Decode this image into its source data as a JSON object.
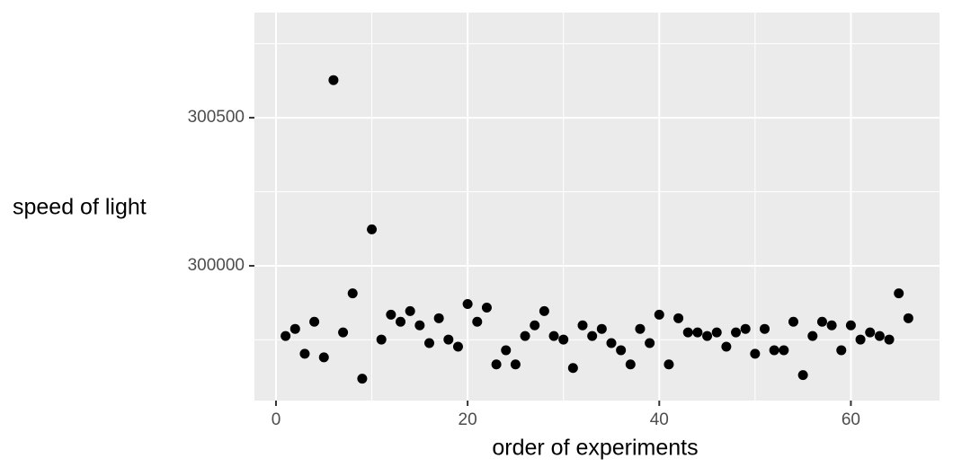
{
  "chart_data": {
    "type": "scatter",
    "x_label": "order of experiments",
    "y_label": "speed of light",
    "x": [
      1,
      2,
      3,
      4,
      5,
      6,
      7,
      8,
      9,
      10,
      11,
      12,
      13,
      14,
      15,
      16,
      17,
      18,
      19,
      20,
      21,
      22,
      23,
      24,
      25,
      26,
      27,
      28,
      29,
      30,
      31,
      32,
      33,
      34,
      35,
      36,
      37,
      38,
      39,
      40,
      41,
      42,
      43,
      44,
      45,
      46,
      47,
      48,
      49,
      50,
      51,
      52,
      53,
      54,
      55,
      56,
      57,
      58,
      59,
      60,
      61,
      62,
      63,
      64,
      65,
      66
    ],
    "values": [
      299763,
      299787,
      299703,
      299811,
      299691,
      300627,
      299775,
      299907,
      299619,
      300123,
      299751,
      299835,
      299811,
      299847,
      299799,
      299739,
      299823,
      299751,
      299727,
      299871,
      299811,
      299859,
      299667,
      299715,
      299667,
      299763,
      299799,
      299847,
      299763,
      299751,
      299655,
      299799,
      299763,
      299787,
      299739,
      299715,
      299667,
      299787,
      299739,
      299835,
      299667,
      299823,
      299775,
      299775,
      299763,
      299775,
      299727,
      299775,
      299787,
      299703,
      299787,
      299715,
      299715,
      299811,
      299631,
      299763,
      299811,
      299799,
      299715,
      299799,
      299751,
      299775,
      299763,
      299751,
      299907,
      299823
    ],
    "color": "#000000",
    "xlim": [
      -2.25,
      69.25
    ],
    "ylim": [
      299545,
      300855
    ],
    "xticks": [
      0,
      20,
      40,
      60
    ],
    "yticks": [
      300000,
      300500
    ],
    "x_minor_ticks": [
      10,
      30,
      50
    ],
    "y_minor_ticks": [
      299750,
      300250,
      300750
    ],
    "grid": true
  }
}
